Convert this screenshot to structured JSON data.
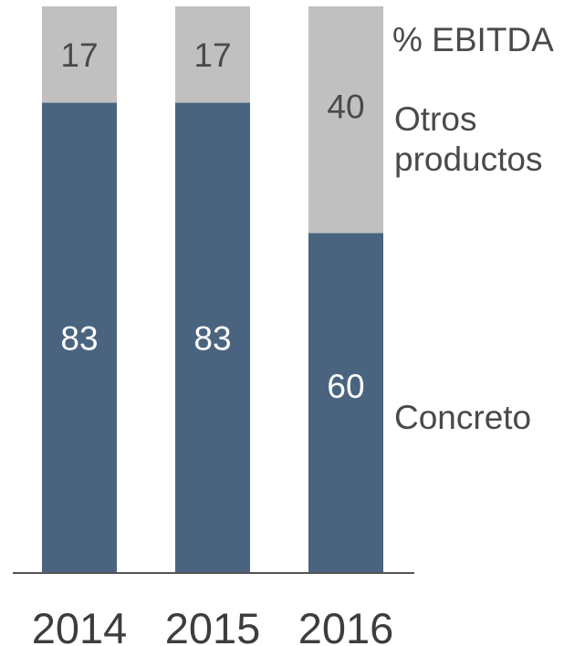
{
  "chart_data": {
    "type": "bar",
    "stacked": true,
    "title": "",
    "xlabel": "",
    "ylabel": "",
    "unit": "%",
    "ylim": [
      0,
      100
    ],
    "grid": false,
    "categories": [
      "2014",
      "2015",
      "2016"
    ],
    "series": [
      {
        "name": "Concreto",
        "values": [
          83,
          83,
          60
        ],
        "color": "#4a6480",
        "label_color": "#ffffff"
      },
      {
        "name": "Otros productos",
        "values": [
          17,
          17,
          40
        ],
        "color": "#c0c0c0",
        "label_color": "#4a4a4a"
      }
    ],
    "header_label": "% EBITDA",
    "legend_placement": "right, beside last bar"
  }
}
